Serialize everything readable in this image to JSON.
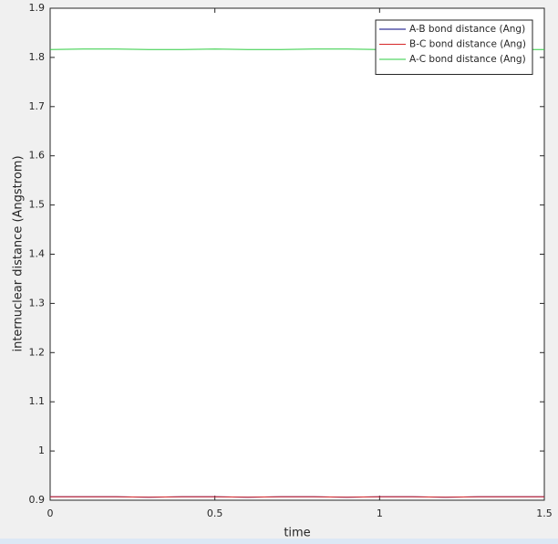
{
  "chart_data": {
    "type": "line",
    "xlabel": "time",
    "ylabel": "internuclear distance (Angstrom)",
    "x": [
      0,
      0.1,
      0.2,
      0.3,
      0.4,
      0.5,
      0.6,
      0.7,
      0.8,
      0.9,
      1.0,
      1.1,
      1.2,
      1.3,
      1.4,
      1.5
    ],
    "series": [
      {
        "name": "A-B bond distance (Ang)",
        "color": "#00007f",
        "values": [
          0.907,
          0.907,
          0.907,
          0.906,
          0.907,
          0.907,
          0.906,
          0.907,
          0.907,
          0.906,
          0.907,
          0.907,
          0.906,
          0.907,
          0.907,
          0.907
        ]
      },
      {
        "name": "B-C bond distance (Ang)",
        "color": "#d62728",
        "values": [
          0.907,
          0.907,
          0.907,
          0.906,
          0.907,
          0.907,
          0.906,
          0.907,
          0.907,
          0.906,
          0.907,
          0.907,
          0.906,
          0.907,
          0.907,
          0.907
        ]
      },
      {
        "name": "A-C bond distance (Ang)",
        "color": "#2ecc40",
        "values": [
          1.816,
          1.817,
          1.817,
          1.816,
          1.816,
          1.817,
          1.816,
          1.816,
          1.817,
          1.817,
          1.816,
          1.816,
          1.817,
          1.817,
          1.816,
          1.816
        ]
      }
    ],
    "xlim": [
      0,
      1.5
    ],
    "xticks": [
      0,
      0.5,
      1,
      1.5
    ],
    "ylim": [
      0.9,
      1.9
    ],
    "yticks": [
      0.9,
      1,
      1.1,
      1.2,
      1.3,
      1.4,
      1.5,
      1.6,
      1.7,
      1.8,
      1.9
    ],
    "legend": "top-right"
  }
}
